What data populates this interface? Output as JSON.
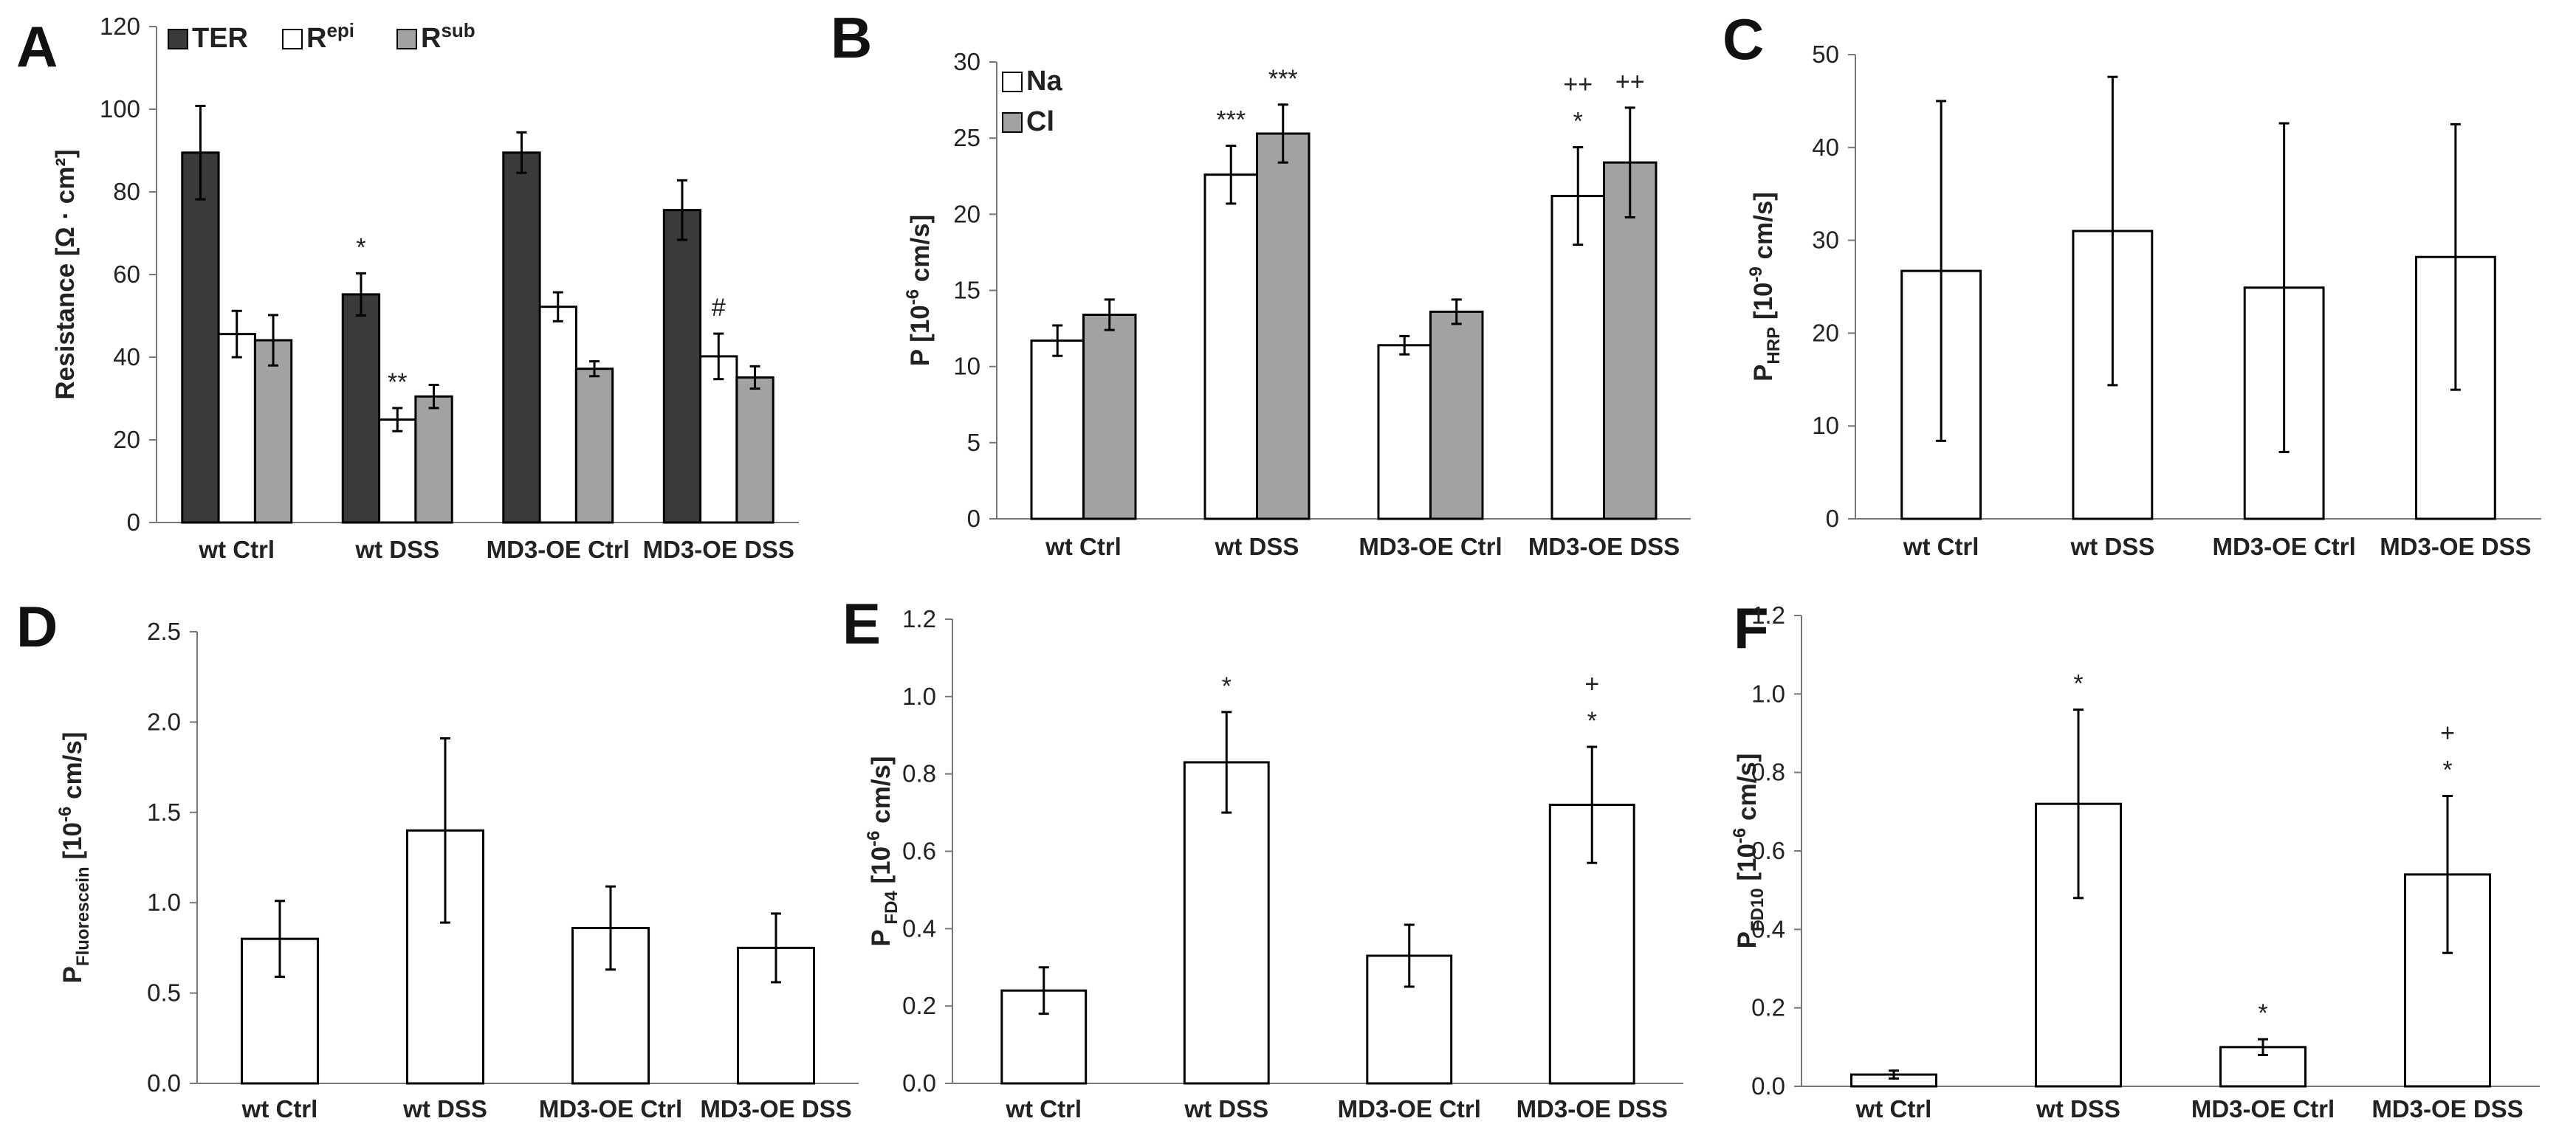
{
  "colors": {
    "dark": "#3a3a3a",
    "gray": "#a2a2a2",
    "white": "#ffffff",
    "line": "#000000"
  },
  "chart_data": [
    {
      "panel": "A",
      "type": "bar",
      "ylabel": "Resistance [Ω · cm²]",
      "ylim": [
        0,
        120
      ],
      "yticks": [
        0,
        20,
        40,
        60,
        80,
        100,
        120
      ],
      "categories": [
        "wt Ctrl",
        "wt DSS",
        "MD3-OE Ctrl",
        "MD3-OE DSS"
      ],
      "legend": "top-left",
      "series": [
        {
          "name": "TER",
          "sup": "",
          "fill": "dark",
          "values": [
            89.5,
            55.2,
            89.5,
            75.6
          ],
          "errors": [
            11.3,
            5.1,
            4.9,
            7.2
          ]
        },
        {
          "name": "R",
          "sup": "epi",
          "fill": "white",
          "values": [
            45.6,
            24.9,
            52.2,
            40.2
          ],
          "errors": [
            5.6,
            2.8,
            3.5,
            5.5
          ]
        },
        {
          "name": "R",
          "sup": "sub",
          "fill": "gray",
          "values": [
            44.1,
            30.5,
            37.2,
            35.1
          ],
          "errors": [
            6.1,
            2.8,
            1.8,
            2.7
          ]
        }
      ],
      "annotations": [
        {
          "series": 0,
          "category": 1,
          "text": "*"
        },
        {
          "series": 1,
          "category": 1,
          "text": "**"
        },
        {
          "series": 1,
          "category": 3,
          "text": "#"
        }
      ]
    },
    {
      "panel": "B",
      "type": "bar",
      "ylabel": "P [10",
      "ylabel_sup": "-6",
      "ylabel_rest": " cm/s]",
      "ylim": [
        0,
        30
      ],
      "yticks": [
        0,
        5,
        10,
        15,
        20,
        25,
        30
      ],
      "categories": [
        "wt Ctrl",
        "wt DSS",
        "MD3-OE Ctrl",
        "MD3-OE DSS"
      ],
      "legend": "top-left",
      "series": [
        {
          "name": "Na",
          "sup": "",
          "fill": "white",
          "values": [
            11.7,
            22.6,
            11.4,
            21.2
          ],
          "errors": [
            1.0,
            1.9,
            0.6,
            3.2
          ]
        },
        {
          "name": "Cl",
          "sup": "",
          "fill": "gray",
          "values": [
            13.4,
            25.3,
            13.6,
            23.4
          ],
          "errors": [
            1.0,
            1.9,
            0.8,
            3.6
          ]
        }
      ],
      "annotations": [
        {
          "series": 0,
          "category": 1,
          "text": "***"
        },
        {
          "series": 1,
          "category": 1,
          "text": "***"
        },
        {
          "series": 0,
          "category": 3,
          "text": "*",
          "text2": "++"
        },
        {
          "series": 1,
          "category": 3,
          "text": "++"
        }
      ]
    },
    {
      "panel": "C",
      "type": "bar",
      "ylabel": "P",
      "ylabel_sub": "HRP",
      "ylabel_rest": " [10",
      "ylabel_sup": "-9",
      "ylabel_rest2": " cm/s]",
      "ylim": [
        0,
        50
      ],
      "yticks": [
        0,
        10,
        20,
        30,
        40,
        50
      ],
      "categories": [
        "wt Ctrl",
        "wt DSS",
        "MD3-OE Ctrl",
        "MD3-OE DSS"
      ],
      "series": [
        {
          "name": "",
          "fill": "white",
          "values": [
            26.7,
            31.0,
            24.9,
            28.2
          ],
          "errors": [
            18.3,
            16.6,
            17.7,
            14.3
          ]
        }
      ],
      "annotations": []
    },
    {
      "panel": "D",
      "type": "bar",
      "ylabel": "P",
      "ylabel_sub": "Fluorescein",
      "ylabel_rest": " [10",
      "ylabel_sup": "-6",
      "ylabel_rest2": " cm/s]",
      "ylim": [
        0,
        2.5
      ],
      "yticks": [
        "0.0",
        "0.5",
        "1.0",
        "1.5",
        "2.0",
        "2.5"
      ],
      "categories": [
        "wt Ctrl",
        "wt DSS",
        "MD3-OE Ctrl",
        "MD3-OE DSS"
      ],
      "series": [
        {
          "name": "",
          "fill": "white",
          "values": [
            0.8,
            1.4,
            0.86,
            0.75
          ],
          "errors": [
            0.21,
            0.51,
            0.23,
            0.19
          ]
        }
      ],
      "annotations": []
    },
    {
      "panel": "E",
      "type": "bar",
      "ylabel": "P",
      "ylabel_sub": " FD4",
      "ylabel_rest": " [10",
      "ylabel_sup": "-6",
      "ylabel_rest2": " cm/s]",
      "ylim": [
        0,
        1.2
      ],
      "yticks": [
        "0.0",
        "0.2",
        "0.4",
        "0.6",
        "0.8",
        "1.0",
        "1.2"
      ],
      "categories": [
        "wt Ctrl",
        "wt DSS",
        "MD3-OE Ctrl",
        "MD3-OE DSS"
      ],
      "series": [
        {
          "name": "",
          "fill": "white",
          "values": [
            0.24,
            0.83,
            0.33,
            0.72
          ],
          "errors": [
            0.06,
            0.13,
            0.08,
            0.15
          ]
        }
      ],
      "annotations": [
        {
          "series": 0,
          "category": 1,
          "text": "*"
        },
        {
          "series": 0,
          "category": 3,
          "text": "*",
          "text2": "+"
        }
      ]
    },
    {
      "panel": "F",
      "type": "bar",
      "ylabel": "P",
      "ylabel_sub": "FD10",
      "ylabel_rest": " [10",
      "ylabel_sup": "-6",
      "ylabel_rest2": " cm/s]",
      "ylim": [
        0,
        1.2
      ],
      "yticks": [
        "0.0",
        "0.2",
        "0.4",
        "0.6",
        "0.8",
        "1.0",
        "1.2"
      ],
      "categories": [
        "wt Ctrl",
        "wt DSS",
        "MD3-OE Ctrl",
        "MD3-OE DSS"
      ],
      "series": [
        {
          "name": "",
          "fill": "white",
          "values": [
            0.03,
            0.72,
            0.1,
            0.54
          ],
          "errors": [
            0.01,
            0.24,
            0.02,
            0.2
          ]
        }
      ],
      "annotations": [
        {
          "series": 0,
          "category": 1,
          "text": "*"
        },
        {
          "series": 0,
          "category": 2,
          "text": "*"
        },
        {
          "series": 0,
          "category": 3,
          "text": "*",
          "text2": "+"
        }
      ]
    }
  ]
}
